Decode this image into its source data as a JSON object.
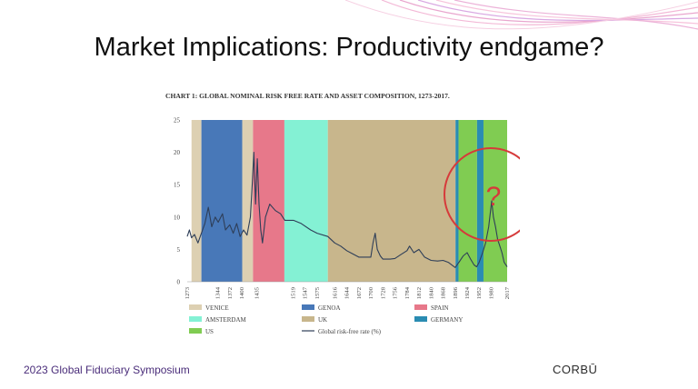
{
  "slide": {
    "title": "Market Implications: Productivity endgame?",
    "footer_left": "2023 Global Fiduciary Symposium",
    "footer_right": "CORBŪ",
    "annotation": "?"
  },
  "colors": {
    "VENICE": "#ddd0b2",
    "GENOA": "#4878b8",
    "SPAIN": "#e7788a",
    "AMSTERDAM": "#84f1d4",
    "UK": "#c8b68c",
    "GERMANY": "#2a8cb2",
    "US": "#80cc52",
    "line": "#2e3e58",
    "accent_circle": "#d63a3a"
  },
  "chart_data": {
    "type": "line",
    "title": "CHART 1: GLOBAL NOMINAL RISK FREE RATE AND ASSET COMPOSITION, 1273-2017.",
    "xlim": [
      1273,
      2017
    ],
    "ylim": [
      0,
      25
    ],
    "yticks": [
      0,
      5,
      10,
      15,
      20,
      25
    ],
    "xticks": [
      1273,
      1344,
      1372,
      1400,
      1435,
      1519,
      1547,
      1575,
      1616,
      1644,
      1672,
      1700,
      1728,
      1756,
      1784,
      1812,
      1840,
      1868,
      1896,
      1924,
      1952,
      1980,
      2017
    ],
    "bands": [
      {
        "name": "VENICE",
        "start": 1283,
        "end": 1306
      },
      {
        "name": "GENOA",
        "start": 1306,
        "end": 1401
      },
      {
        "name": "VENICE",
        "start": 1401,
        "end": 1426
      },
      {
        "name": "SPAIN",
        "start": 1426,
        "end": 1499
      },
      {
        "name": "AMSTERDAM",
        "start": 1499,
        "end": 1600
      },
      {
        "name": "UK",
        "start": 1600,
        "end": 1897
      },
      {
        "name": "GERMANY",
        "start": 1897,
        "end": 1904
      },
      {
        "name": "US",
        "start": 1904,
        "end": 1947
      },
      {
        "name": "GERMANY",
        "start": 1947,
        "end": 1962
      },
      {
        "name": "US",
        "start": 1962,
        "end": 2017
      }
    ],
    "legend": [
      {
        "label": "VENICE",
        "key": "VENICE",
        "kind": "swatch"
      },
      {
        "label": "GENOA",
        "key": "GENOA",
        "kind": "swatch"
      },
      {
        "label": "SPAIN",
        "key": "SPAIN",
        "kind": "swatch"
      },
      {
        "label": "AMSTERDAM",
        "key": "AMSTERDAM",
        "kind": "swatch"
      },
      {
        "label": "UK",
        "key": "UK",
        "kind": "swatch"
      },
      {
        "label": "GERMANY",
        "key": "GERMANY",
        "kind": "swatch"
      },
      {
        "label": "US",
        "key": "US",
        "kind": "swatch"
      },
      {
        "label": "Global risk-free rate (%)",
        "key": "line",
        "kind": "line"
      }
    ],
    "series": [
      {
        "name": "Global risk-free rate (%)",
        "points": [
          [
            1273,
            7
          ],
          [
            1278,
            8
          ],
          [
            1283,
            6.8
          ],
          [
            1290,
            7.3
          ],
          [
            1298,
            6
          ],
          [
            1306,
            7.5
          ],
          [
            1314,
            9
          ],
          [
            1322,
            11.5
          ],
          [
            1330,
            8.5
          ],
          [
            1338,
            10
          ],
          [
            1345,
            9.2
          ],
          [
            1355,
            10.5
          ],
          [
            1362,
            8
          ],
          [
            1372,
            8.8
          ],
          [
            1380,
            7.5
          ],
          [
            1388,
            9
          ],
          [
            1396,
            7
          ],
          [
            1404,
            8
          ],
          [
            1412,
            7.2
          ],
          [
            1420,
            10
          ],
          [
            1425,
            16
          ],
          [
            1428,
            20
          ],
          [
            1432,
            12
          ],
          [
            1436,
            19
          ],
          [
            1440,
            12
          ],
          [
            1444,
            8
          ],
          [
            1448,
            6
          ],
          [
            1455,
            10
          ],
          [
            1465,
            12
          ],
          [
            1478,
            11
          ],
          [
            1490,
            10.5
          ],
          [
            1500,
            9.5
          ],
          [
            1520,
            9.5
          ],
          [
            1538,
            9
          ],
          [
            1560,
            8
          ],
          [
            1575,
            7.5
          ],
          [
            1600,
            7
          ],
          [
            1616,
            6
          ],
          [
            1630,
            5.5
          ],
          [
            1644,
            4.8
          ],
          [
            1658,
            4.3
          ],
          [
            1672,
            3.8
          ],
          [
            1700,
            3.8
          ],
          [
            1705,
            6
          ],
          [
            1710,
            7.5
          ],
          [
            1715,
            5
          ],
          [
            1722,
            4
          ],
          [
            1728,
            3.5
          ],
          [
            1745,
            3.5
          ],
          [
            1756,
            3.6
          ],
          [
            1770,
            4.2
          ],
          [
            1784,
            4.8
          ],
          [
            1790,
            5.5
          ],
          [
            1800,
            4.5
          ],
          [
            1812,
            5
          ],
          [
            1825,
            3.8
          ],
          [
            1840,
            3.3
          ],
          [
            1855,
            3.2
          ],
          [
            1868,
            3.3
          ],
          [
            1880,
            3
          ],
          [
            1896,
            2.2
          ],
          [
            1905,
            3
          ],
          [
            1915,
            4
          ],
          [
            1924,
            4.5
          ],
          [
            1932,
            3.5
          ],
          [
            1940,
            2.6
          ],
          [
            1946,
            2.3
          ],
          [
            1952,
            3
          ],
          [
            1960,
            4.5
          ],
          [
            1967,
            6
          ],
          [
            1974,
            8.5
          ],
          [
            1981,
            12.5
          ],
          [
            1985,
            10
          ],
          [
            1990,
            8.5
          ],
          [
            1995,
            6.5
          ],
          [
            2000,
            5.5
          ],
          [
            2005,
            4.5
          ],
          [
            2010,
            3
          ],
          [
            2017,
            2.3
          ]
        ]
      }
    ]
  }
}
